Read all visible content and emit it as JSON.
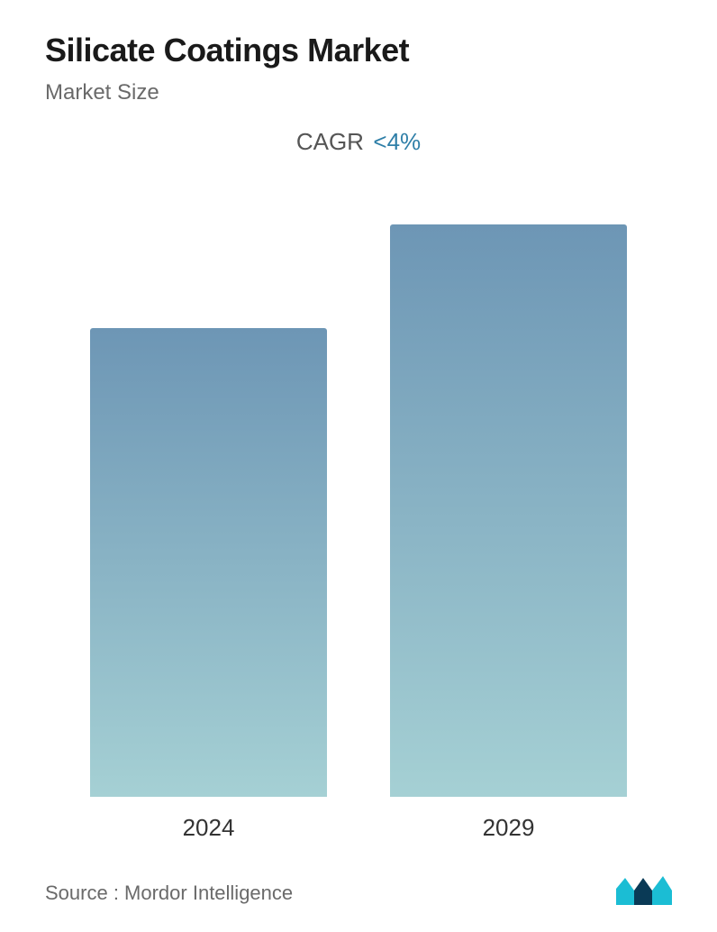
{
  "header": {
    "title": "Silicate Coatings Market",
    "subtitle": "Market Size"
  },
  "cagr": {
    "label": "CAGR",
    "value": "<4%",
    "label_color": "#555555",
    "value_color": "#2f7fa8",
    "fontsize": 26
  },
  "chart": {
    "type": "bar",
    "categories": [
      "2024",
      "2029"
    ],
    "values": [
      520,
      635
    ],
    "max_height": 640,
    "bar_gradient_top": "#6d96b5",
    "bar_gradient_bottom": "#a5d0d4",
    "bar_width_pct": 100,
    "bar_gap": 70,
    "label_fontsize": 26,
    "label_color": "#333333",
    "background_color": "#ffffff"
  },
  "footer": {
    "source": "Source :  Mordor Intelligence",
    "source_color": "#6a6a6a",
    "source_fontsize": 22,
    "logo_color_dark": "#0a3a56",
    "logo_color_teal": "#1bbdd4"
  },
  "typography": {
    "title_fontsize": 36,
    "title_weight": 700,
    "title_color": "#1a1a1a",
    "subtitle_fontsize": 24,
    "subtitle_color": "#6a6a6a"
  }
}
